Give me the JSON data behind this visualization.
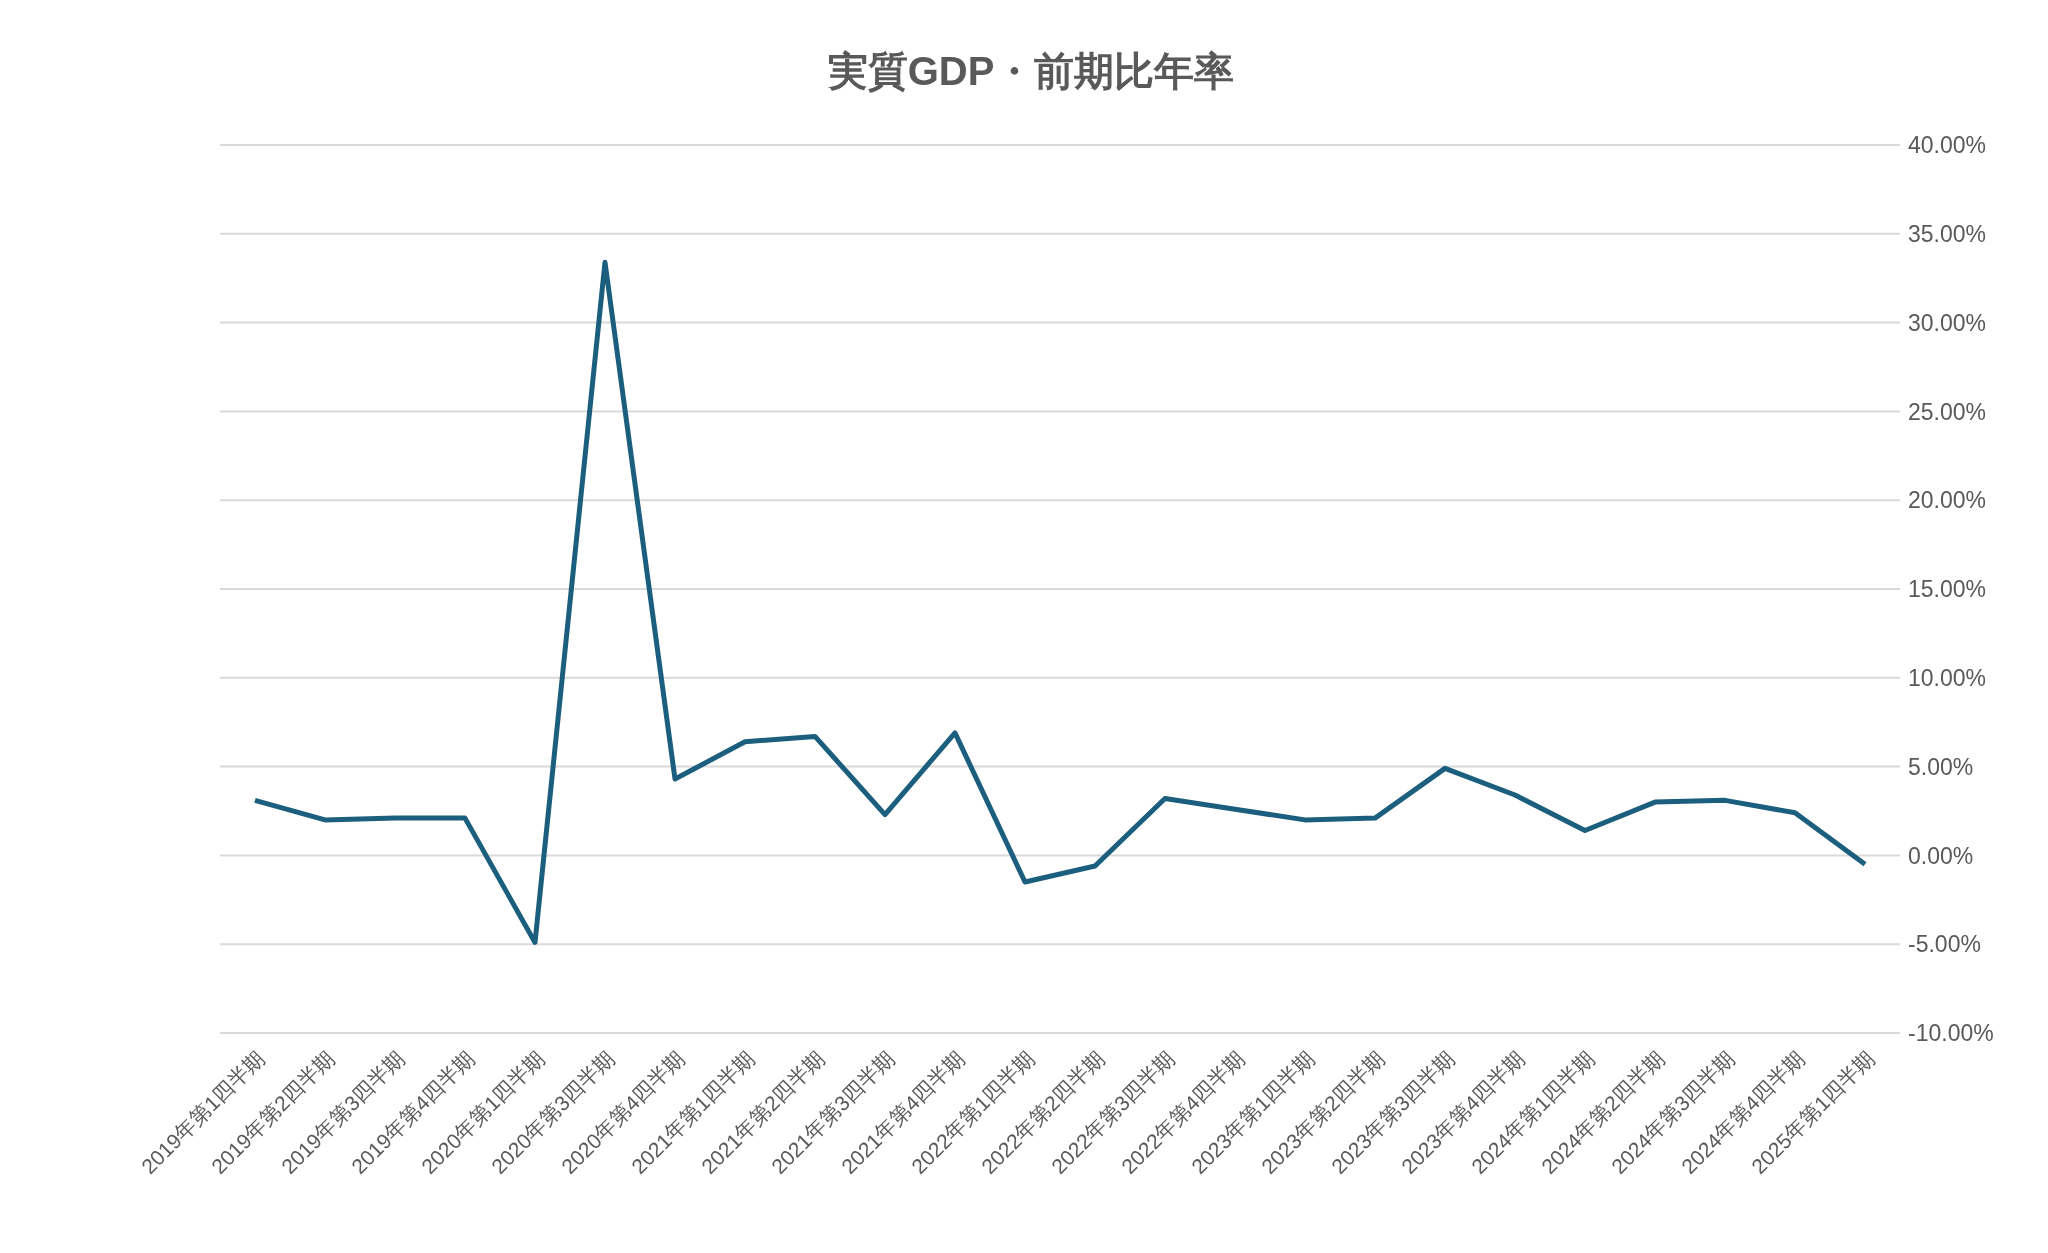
{
  "chart_data": {
    "type": "line",
    "title": "実質GDP・前期比年率",
    "categories": [
      "2019年第1四半期",
      "2019年第2四半期",
      "2019年第3四半期",
      "2019年第4四半期",
      "2020年第1四半期",
      "2020年第3四半期",
      "2020年第4四半期",
      "2021年第1四半期",
      "2021年第2四半期",
      "2021年第3四半期",
      "2021年第4四半期",
      "2022年第1四半期",
      "2022年第2四半期",
      "2022年第3四半期",
      "2022年第4四半期",
      "2023年第1四半期",
      "2023年第2四半期",
      "2023年第3四半期",
      "2023年第4四半期",
      "2024年第1四半期",
      "2024年第2四半期",
      "2024年第3四半期",
      "2024年第4四半期",
      "2025年第1四半期"
    ],
    "series": [
      {
        "color": "#1b5e7e",
        "values": [
          3.1,
          2.0,
          2.1,
          2.1,
          -4.9,
          33.4,
          4.3,
          6.4,
          6.7,
          2.3,
          6.9,
          -1.5,
          -0.6,
          3.2,
          2.6,
          2.0,
          2.1,
          4.9,
          3.4,
          1.4,
          3.0,
          3.1,
          2.4,
          -0.5
        ]
      }
    ],
    "ylim": [
      -10,
      40
    ],
    "yticks": [
      {
        "value": -10,
        "label": "-10.00%"
      },
      {
        "value": -5,
        "label": "-5.00%"
      },
      {
        "value": 0,
        "label": "0.00%"
      },
      {
        "value": 5,
        "label": "5.00%"
      },
      {
        "value": 10,
        "label": "10.00%"
      },
      {
        "value": 15,
        "label": "15.00%"
      },
      {
        "value": 20,
        "label": "20.00%"
      },
      {
        "value": 25,
        "label": "25.00%"
      },
      {
        "value": 30,
        "label": "30.00%"
      },
      {
        "value": 35,
        "label": "35.00%"
      },
      {
        "value": 40,
        "label": "40.00%"
      }
    ],
    "grid": "y",
    "marker": "none",
    "line_style": "solid",
    "legend": false
  }
}
